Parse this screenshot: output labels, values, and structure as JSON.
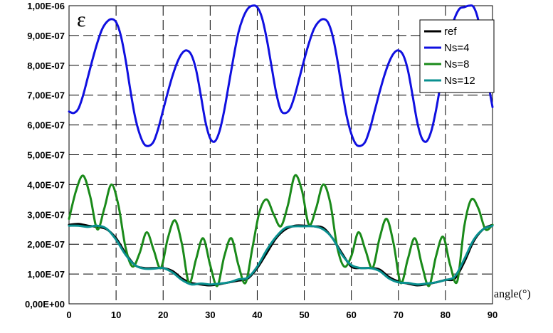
{
  "chart_data": {
    "type": "line",
    "symbol": "ε",
    "xlabel": "angle(°)",
    "ylabel": "",
    "xlim": [
      0,
      90
    ],
    "ylim": [
      0,
      1e-06
    ],
    "xticks": [
      "0",
      "10",
      "20",
      "30",
      "40",
      "50",
      "60",
      "70",
      "80",
      "90"
    ],
    "yticks": [
      "0,00E+00",
      "1,00E-07",
      "2,00E-07",
      "3,00E-07",
      "4,00E-07",
      "5,00E-07",
      "6,00E-07",
      "7,00E-07",
      "8,00E-07",
      "9,00E-07",
      "1,00E-06"
    ],
    "grid": true,
    "legend_position": "top-right",
    "series": [
      {
        "name": "ref",
        "color": "#000000",
        "x": [
          0,
          2,
          4,
          6,
          8,
          10,
          12,
          14,
          16,
          18,
          20,
          22,
          24,
          26,
          28,
          30,
          32,
          34,
          36,
          38,
          40,
          42,
          44,
          46,
          48,
          50,
          52,
          54,
          56,
          58,
          60,
          62,
          64,
          66,
          68,
          70,
          72,
          74,
          76,
          78,
          80,
          82,
          84,
          86,
          88,
          90
        ],
        "values": [
          2.65e-07,
          2.68e-07,
          2.62e-07,
          2.58e-07,
          2.5e-07,
          2.2e-07,
          1.7e-07,
          1.3e-07,
          1.2e-07,
          1.2e-07,
          1.2e-07,
          1.1e-07,
          8.5e-08,
          7e-08,
          6.5e-08,
          6.2e-08,
          6.6e-08,
          7.2e-08,
          7.8e-08,
          8.5e-08,
          1.2e-07,
          1.7e-07,
          2.2e-07,
          2.5e-07,
          2.62e-07,
          2.62e-07,
          2.6e-07,
          2.55e-07,
          2.2e-07,
          1.7e-07,
          1.25e-07,
          1.2e-07,
          1.2e-07,
          1.15e-07,
          9e-08,
          7.5e-08,
          6.8e-08,
          6.2e-08,
          6.6e-08,
          7.2e-08,
          8e-08,
          8.5e-08,
          1.4e-07,
          2.1e-07,
          2.5e-07,
          2.65e-07
        ]
      },
      {
        "name": "Ns=4",
        "color": "#1010e0",
        "x": [
          0,
          1,
          2,
          3,
          4,
          5,
          6,
          7,
          8,
          9,
          10,
          11,
          12,
          13,
          14,
          15,
          16,
          17,
          18,
          19,
          20,
          21,
          22,
          23,
          24,
          25,
          26,
          27,
          28,
          29,
          30,
          31,
          32,
          33,
          34,
          35,
          36,
          37,
          38,
          39,
          40,
          41,
          42,
          43,
          44,
          45,
          46,
          47,
          48,
          49,
          50,
          51,
          52,
          53,
          54,
          55,
          56,
          57,
          58,
          59,
          60,
          61,
          62,
          63,
          64,
          65,
          66,
          67,
          68,
          69,
          70,
          71,
          72,
          73,
          74,
          75,
          76,
          77,
          78,
          79,
          80,
          81,
          82,
          83,
          84,
          85,
          86,
          87,
          88,
          89,
          90
        ],
        "values": [
          6.45e-07,
          6.4e-07,
          6.55e-07,
          7e-07,
          7.6e-07,
          8.2e-07,
          8.75e-07,
          9.2e-07,
          9.45e-07,
          9.55e-07,
          9.45e-07,
          9e-07,
          8.2e-07,
          7.2e-07,
          6.3e-07,
          5.7e-07,
          5.35e-07,
          5.3e-07,
          5.45e-07,
          5.9e-07,
          6.5e-07,
          7.1e-07,
          7.65e-07,
          8.1e-07,
          8.4e-07,
          8.5e-07,
          8.35e-07,
          7.85e-07,
          7e-07,
          6.1e-07,
          5.55e-07,
          5.45e-07,
          5.8e-07,
          6.5e-07,
          7.4e-07,
          8.3e-07,
          9.1e-07,
          9.6e-07,
          9.9e-07,
          1e-06,
          9.95e-07,
          9.6e-07,
          8.9e-07,
          8e-07,
          7.1e-07,
          6.5e-07,
          6.4e-07,
          6.55e-07,
          7e-07,
          7.6e-07,
          8.2e-07,
          8.75e-07,
          9.2e-07,
          9.45e-07,
          9.55e-07,
          9.45e-07,
          9e-07,
          8.2e-07,
          7.2e-07,
          6.3e-07,
          5.7e-07,
          5.35e-07,
          5.3e-07,
          5.45e-07,
          5.9e-07,
          6.5e-07,
          7.1e-07,
          7.65e-07,
          8.1e-07,
          8.4e-07,
          8.5e-07,
          8.35e-07,
          7.85e-07,
          7e-07,
          6.1e-07,
          5.55e-07,
          5.45e-07,
          5.8e-07,
          6.5e-07,
          7.4e-07,
          8.3e-07,
          9.1e-07,
          9.6e-07,
          9.9e-07,
          9.95e-07,
          1e-06,
          9.95e-07,
          9.5e-07,
          8.6e-07,
          7.5e-07,
          6.6e-07
        ]
      },
      {
        "name": "Ns=8",
        "color": "#1a8a1a",
        "x": [
          0,
          1.5,
          3,
          4.5,
          6,
          7.5,
          9,
          10.5,
          12,
          13.5,
          15,
          16.5,
          18,
          19.5,
          21,
          22.5,
          24,
          25.5,
          27,
          28.5,
          30,
          31.5,
          33,
          34.5,
          36,
          37.5,
          39,
          40.5,
          42,
          43.5,
          45,
          46.5,
          48,
          49.5,
          51,
          52.5,
          54,
          55.5,
          57,
          58.5,
          60,
          61.5,
          63,
          64.5,
          66,
          67.5,
          69,
          70.5,
          72,
          73.5,
          75,
          76.5,
          78,
          79.5,
          81,
          82.5,
          84,
          85.5,
          87,
          88.5,
          90
        ],
        "values": [
          2.85e-07,
          3.8e-07,
          4.3e-07,
          3.6e-07,
          2.5e-07,
          3.2e-07,
          4e-07,
          3.3e-07,
          1.9e-07,
          1.25e-07,
          1.7e-07,
          2.4e-07,
          1.8e-07,
          1.2e-07,
          2.2e-07,
          2.8e-07,
          2e-07,
          7e-08,
          1.5e-07,
          2.2e-07,
          1.3e-07,
          6e-08,
          1.6e-07,
          2.2e-07,
          1.3e-07,
          7e-08,
          1.9e-07,
          3.1e-07,
          3.5e-07,
          3e-07,
          2.6e-07,
          3.3e-07,
          4.3e-07,
          3.8e-07,
          2.65e-07,
          3.2e-07,
          4e-07,
          3.4e-07,
          1.9e-07,
          1.25e-07,
          1.6e-07,
          2.4e-07,
          1.8e-07,
          1.2e-07,
          2.2e-07,
          2.85e-07,
          2e-07,
          7e-08,
          1.5e-07,
          2.2e-07,
          1.3e-07,
          6e-08,
          1.6e-07,
          2.25e-07,
          1.3e-07,
          7.5e-08,
          2.6e-07,
          3.5e-07,
          3.2e-07,
          2.5e-07,
          2.65e-07
        ]
      },
      {
        "name": "Ns=12",
        "color": "#0a9090",
        "x": [
          0,
          2,
          4,
          6,
          8,
          10,
          12,
          14,
          16,
          18,
          20,
          22,
          24,
          26,
          28,
          30,
          32,
          34,
          36,
          38,
          40,
          42,
          44,
          46,
          48,
          50,
          52,
          54,
          56,
          58,
          60,
          62,
          64,
          66,
          68,
          70,
          72,
          74,
          76,
          78,
          80,
          82,
          84,
          86,
          88,
          90
        ],
        "values": [
          2.62e-07,
          2.62e-07,
          2.58e-07,
          2.62e-07,
          2.52e-07,
          2.15e-07,
          1.65e-07,
          1.3e-07,
          1.18e-07,
          1.18e-07,
          1.2e-07,
          1.05e-07,
          8e-08,
          6.5e-08,
          6.8e-08,
          6.5e-08,
          6.8e-08,
          7.2e-08,
          8.2e-08,
          8.8e-08,
          1.25e-07,
          1.8e-07,
          2.25e-07,
          2.55e-07,
          2.6e-07,
          2.6e-07,
          2.6e-07,
          2.5e-07,
          2.2e-07,
          1.65e-07,
          1.3e-07,
          1.2e-07,
          1.2e-07,
          1.1e-07,
          8.5e-08,
          7.2e-08,
          7e-08,
          6.5e-08,
          6.8e-08,
          7.2e-08,
          8e-08,
          9.2e-08,
          1.5e-07,
          2.15e-07,
          2.5e-07,
          2.62e-07
        ]
      }
    ]
  }
}
